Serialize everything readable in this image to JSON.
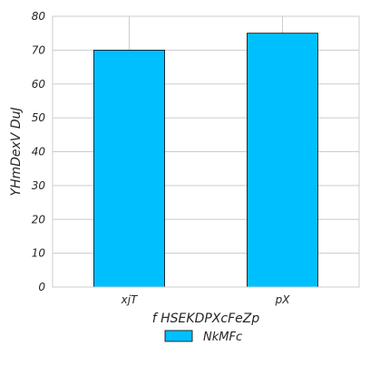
{
  "chart_data": {
    "type": "bar",
    "title": "",
    "xlabel": "f HSEKDPXcFeZp",
    "ylabel": "YHmDexV DuJ",
    "categories": [
      "xjT",
      "pX"
    ],
    "series": [
      {
        "name": "NkMFc",
        "values": [
          70,
          75
        ],
        "color": "#00bfff",
        "edgecolor": "#000000"
      }
    ],
    "ylim": [
      0,
      80
    ],
    "yticks": [
      0,
      10,
      20,
      30,
      40,
      50,
      60,
      70,
      80
    ],
    "grid": true,
    "legend_position": "bottom-center"
  }
}
